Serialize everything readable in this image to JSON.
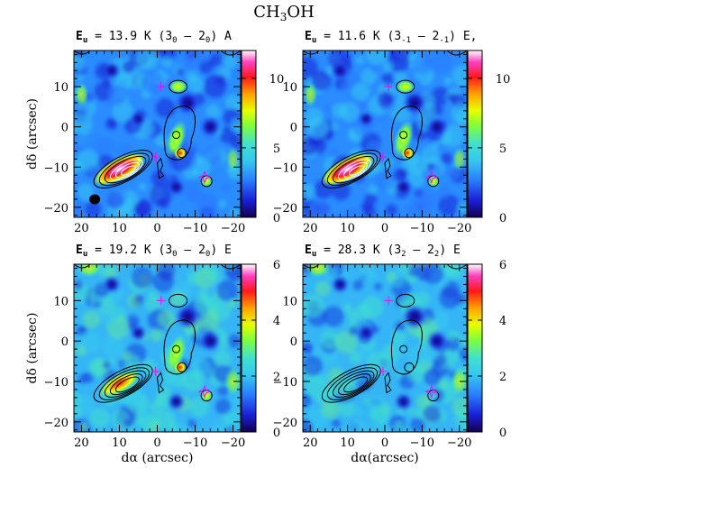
{
  "figure": {
    "title": "CH3OH",
    "panels": [
      {
        "id": "p1",
        "label_energy": "13.9 K",
        "label_transition": "(3",
        "sub_upper": "0",
        "sep": " – 2",
        "sub_lower": "0",
        "suffix": ") A",
        "colorbar_ticks": [
          "0",
          "5",
          "10"
        ],
        "colorbar_max": 12,
        "show_beam": true,
        "show_ylabel": true,
        "show_xlabel": false
      },
      {
        "id": "p2",
        "label_energy": "11.6 K",
        "label_transition": "(3",
        "sub_upper": "-1",
        "sep": " – 2",
        "sub_lower": "-1",
        "suffix": ") E,",
        "colorbar_ticks": [
          "0",
          "5",
          "10"
        ],
        "colorbar_max": 12,
        "show_beam": false,
        "show_ylabel": false,
        "show_xlabel": false
      },
      {
        "id": "p3",
        "label_energy": "19.2 K",
        "label_transition": "(3",
        "sub_upper": "0",
        "sep": " – 2",
        "sub_lower": "0",
        "suffix": ") E",
        "colorbar_ticks": [
          "0",
          "2",
          "4",
          "6"
        ],
        "colorbar_max": 6,
        "show_beam": false,
        "show_ylabel": true,
        "show_xlabel": true
      },
      {
        "id": "p4",
        "label_energy": "28.3 K",
        "label_transition": "(3",
        "sub_upper": "2",
        "sep": " – 2",
        "sub_lower": "2",
        "suffix": ") E",
        "colorbar_ticks": [
          "0",
          "2",
          "4",
          "6"
        ],
        "colorbar_max": 6,
        "show_beam": false,
        "show_ylabel": false,
        "show_xlabel": true
      }
    ],
    "x_ticks": [
      "20",
      "10",
      "0",
      "−10",
      "−20"
    ],
    "y_ticks": [
      "10",
      "0",
      "−10",
      "−20"
    ],
    "ylabel": "dδ (arcsec)",
    "xlabel_left": "dα (arcsec)",
    "xlabel_right": "dα(arcsec)",
    "energy_prefix": "E",
    "energy_sub": "u",
    "energy_eq": " = ",
    "colors": {
      "cmap": [
        "#14004f",
        "#1a1fd6",
        "#2a7bff",
        "#35c8f0",
        "#40e0d0",
        "#7fff3a",
        "#e8ff00",
        "#ffa000",
        "#ff1a1a",
        "#ff40c0",
        "#ffffff"
      ],
      "marker": "#ff00ff",
      "contour": "#000000"
    }
  }
}
